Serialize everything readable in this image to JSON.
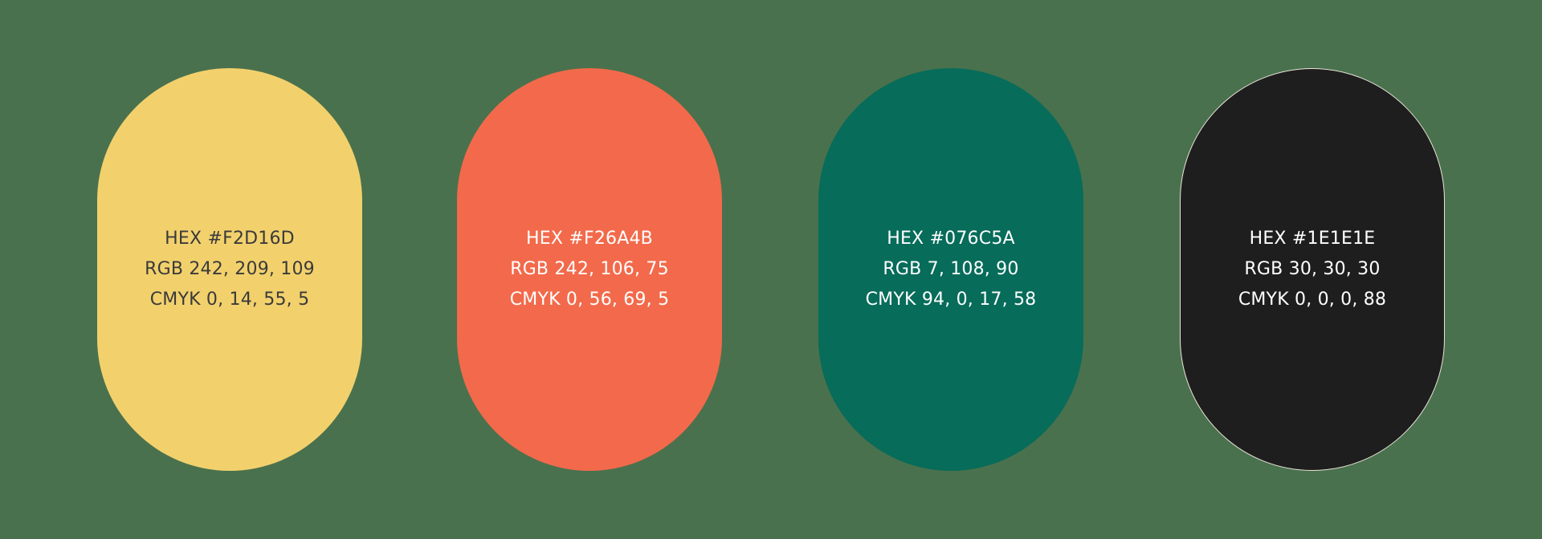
{
  "background_color": "#4A714D",
  "swatches": [
    {
      "hex_label": "HEX #F2D16D",
      "rgb_label": "RGB 242, 209, 109",
      "cmyk_label": "CMYK 0, 14, 55, 5",
      "fill": "#F2D16D",
      "text_color": "#3a3a3a"
    },
    {
      "hex_label": "HEX #F26A4B",
      "rgb_label": "RGB 242, 106, 75",
      "cmyk_label": "CMYK 0, 56, 69, 5",
      "fill": "#F26A4B",
      "text_color": "#ffffff"
    },
    {
      "hex_label": "HEX #076C5A",
      "rgb_label": "RGB 7, 108, 90",
      "cmyk_label": "CMYK 94, 0, 17, 58",
      "fill": "#076C5A",
      "text_color": "#ffffff"
    },
    {
      "hex_label": "HEX #1E1E1E",
      "rgb_label": "RGB 30, 30, 30",
      "cmyk_label": "CMYK 0, 0, 0, 88",
      "fill": "#1E1E1E",
      "text_color": "#ffffff"
    }
  ]
}
